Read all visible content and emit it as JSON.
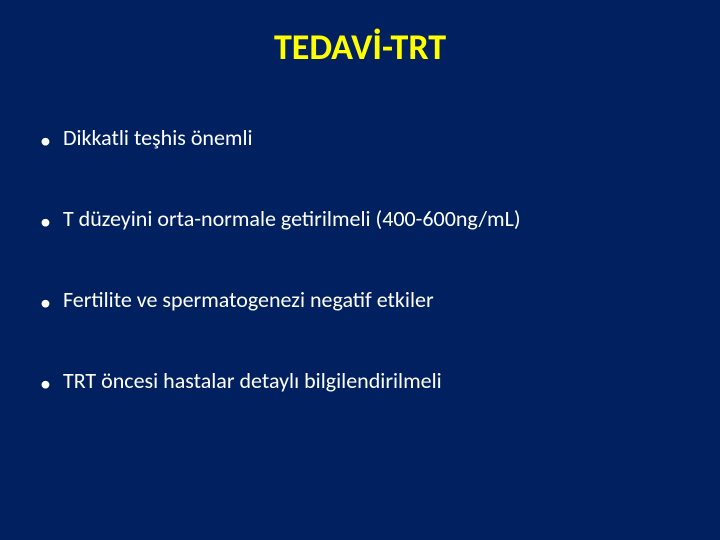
{
  "slide": {
    "background_color": "#002060",
    "title": {
      "text": "TEDAVİ-TRT",
      "color": "#ffff00",
      "fontsize": 36,
      "fontweight": 700
    },
    "bullets": {
      "items": [
        "Dikkatli teşhis önemli",
        "T düzeyini orta-normale getirilmeli (400-600ng/mL)",
        "Fertilite ve spermatogenezi negatif etkiler",
        "TRT öncesi hastalar detaylı bilgilendirilmeli"
      ],
      "text_color": "#ffffff",
      "fontsize": 22,
      "bullet_char": "•",
      "line_spacing": 54
    }
  }
}
